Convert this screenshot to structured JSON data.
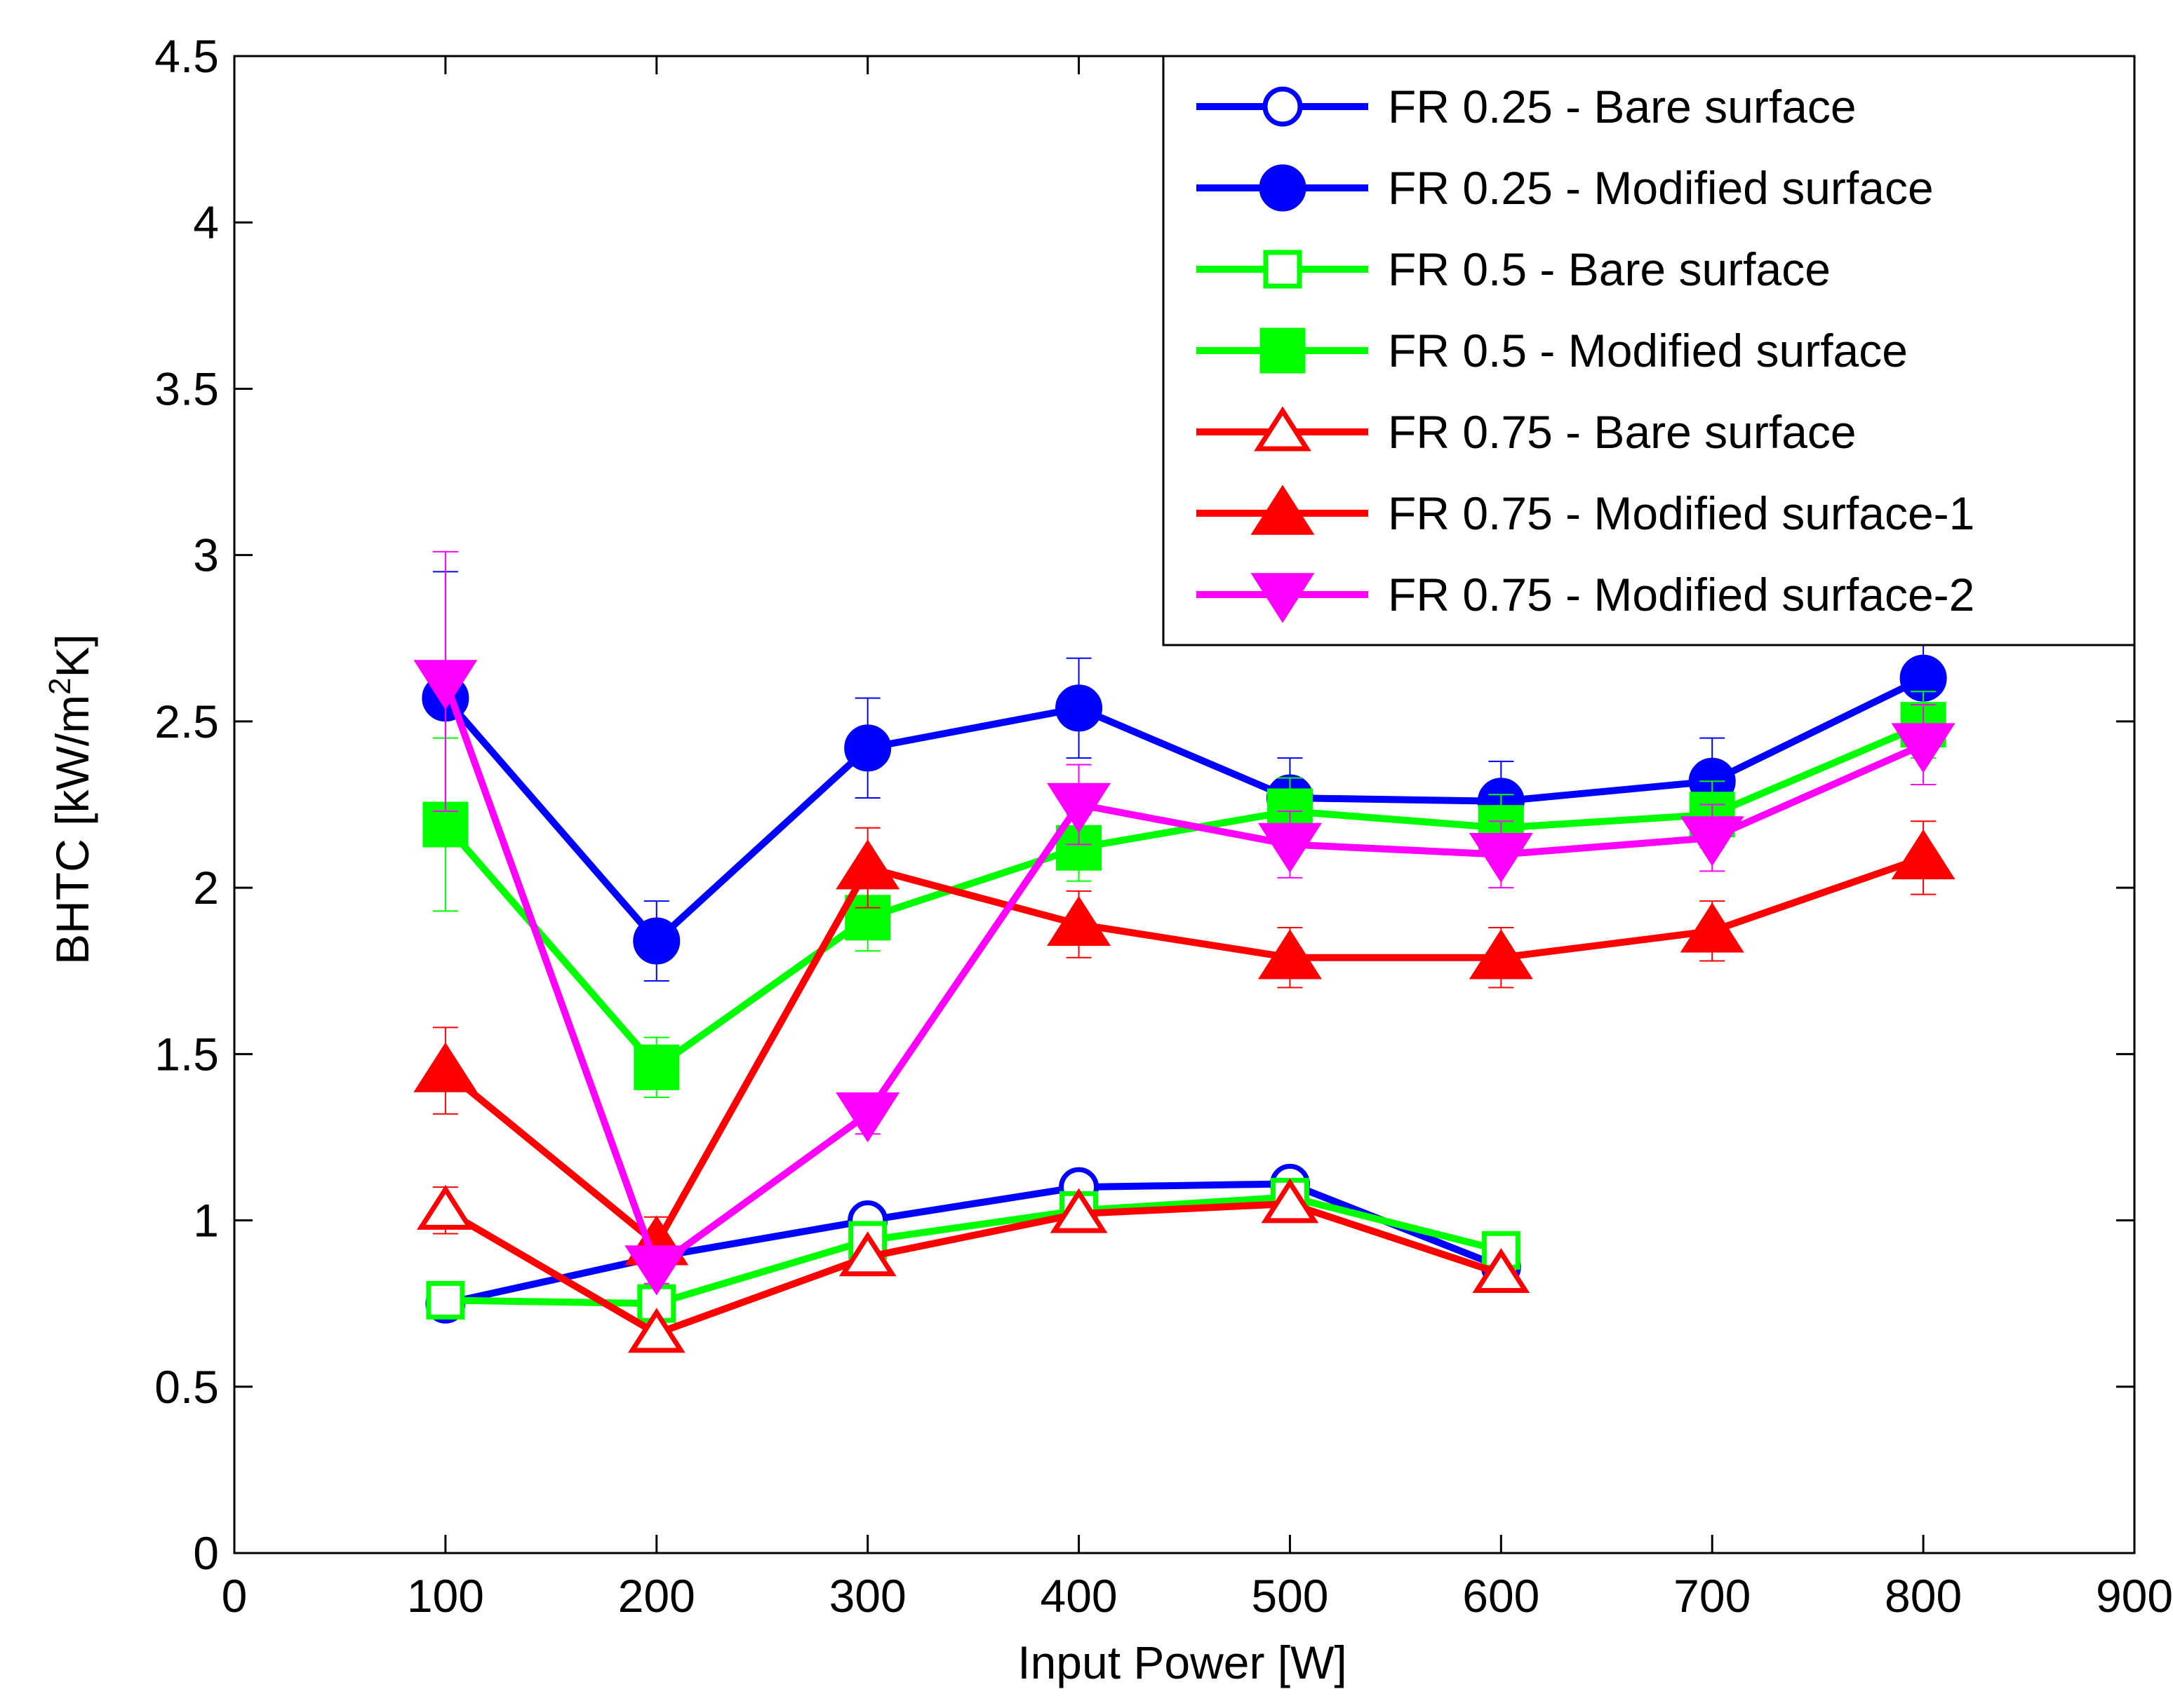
{
  "chart_data": {
    "type": "line",
    "title": "",
    "xlabel": "Input Power [W]",
    "ylabel": {
      "prefix": "BHTC [kW/m",
      "sup": "2",
      "suffix": "K]"
    },
    "xlim": [
      0,
      900
    ],
    "ylim": [
      0,
      4.5
    ],
    "xticks": [
      0,
      100,
      200,
      300,
      400,
      500,
      600,
      700,
      800,
      900
    ],
    "yticks": [
      0,
      0.5,
      1,
      1.5,
      2,
      2.5,
      3,
      3.5,
      4,
      4.5
    ],
    "xtick_labels": [
      "0",
      "100",
      "200",
      "300",
      "400",
      "500",
      "600",
      "700",
      "800",
      "900"
    ],
    "ytick_labels": [
      "0",
      "0.5",
      "1",
      "1.5",
      "2",
      "2.5",
      "3",
      "3.5",
      "4",
      "4.5"
    ],
    "grid": false,
    "legend_position": "top-right",
    "series": [
      {
        "name": "FR 0.25 - Bare surface",
        "color": "#0000ff",
        "marker": "circle",
        "filled": false,
        "x": [
          100,
          200,
          300,
          400,
          500,
          600
        ],
        "values": [
          0.75,
          0.89,
          1.0,
          1.1,
          1.11,
          0.86
        ],
        "errors": []
      },
      {
        "name": "FR 0.25 - Modified surface",
        "color": "#0000ff",
        "marker": "circle",
        "filled": true,
        "x": [
          100,
          200,
          300,
          400,
          500,
          600,
          700,
          800
        ],
        "values": [
          2.57,
          1.84,
          2.42,
          2.54,
          2.27,
          2.26,
          2.32,
          2.63
        ],
        "errors": [
          0.38,
          0.12,
          0.15,
          0.15,
          0.12,
          0.12,
          0.13,
          0.1
        ]
      },
      {
        "name": "FR 0.5 - Bare surface",
        "color": "#00ff00",
        "marker": "square",
        "filled": false,
        "x": [
          100,
          200,
          300,
          400,
          500,
          600
        ],
        "values": [
          0.76,
          0.75,
          0.94,
          1.03,
          1.07,
          0.91
        ],
        "errors": []
      },
      {
        "name": "FR 0.5 - Modified surface",
        "color": "#00ff00",
        "marker": "square",
        "filled": true,
        "x": [
          100,
          200,
          300,
          400,
          500,
          600,
          700,
          800
        ],
        "values": [
          2.19,
          1.46,
          1.91,
          2.12,
          2.23,
          2.18,
          2.22,
          2.49
        ],
        "errors": [
          0.26,
          0.09,
          0.1,
          0.1,
          0.1,
          0.1,
          0.1,
          0.1
        ]
      },
      {
        "name": "FR 0.75 - Bare surface",
        "color": "#ff0000",
        "marker": "triangle-up",
        "filled": false,
        "x": [
          100,
          200,
          300,
          400,
          500,
          600
        ],
        "values": [
          1.03,
          0.66,
          0.89,
          1.02,
          1.05,
          0.84
        ],
        "errors": [
          0.07,
          0,
          0,
          0,
          0,
          0
        ]
      },
      {
        "name": "FR 0.75 - Modified surface-1",
        "color": "#ff0000",
        "marker": "triangle-up",
        "filled": true,
        "x": [
          100,
          200,
          300,
          400,
          500,
          600,
          700,
          800
        ],
        "values": [
          1.45,
          0.93,
          2.06,
          1.89,
          1.79,
          1.79,
          1.87,
          2.09
        ],
        "errors": [
          0.13,
          0.08,
          0.12,
          0.1,
          0.09,
          0.09,
          0.09,
          0.11
        ]
      },
      {
        "name": "FR 0.75 - Modified surface-2",
        "color": "#ff00ff",
        "marker": "triangle-down",
        "filled": true,
        "x": [
          100,
          200,
          300,
          400,
          500,
          600,
          700,
          800
        ],
        "values": [
          2.62,
          0.86,
          1.32,
          2.25,
          2.13,
          2.1,
          2.15,
          2.43
        ],
        "errors": [
          0.39,
          0.05,
          0.06,
          0.12,
          0.1,
          0.1,
          0.1,
          0.12
        ]
      }
    ]
  }
}
